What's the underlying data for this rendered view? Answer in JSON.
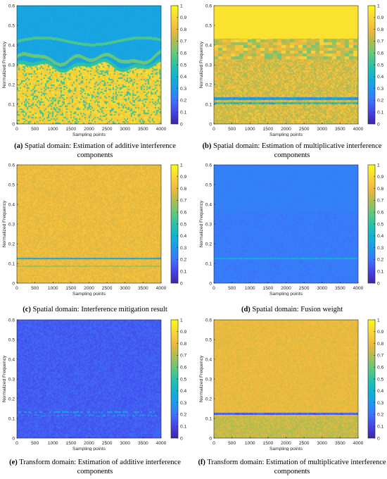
{
  "colors": {
    "colormap": [
      "#3e26a8",
      "#4744e8",
      "#3d75fd",
      "#1d9aeb",
      "#10b4d3",
      "#2dc2a4",
      "#69c77a",
      "#b1bc50",
      "#f0b93d",
      "#fad73a",
      "#f9fb15"
    ],
    "axis": "#262626"
  },
  "chart_data": [
    {
      "id": "a",
      "type": "heatmap",
      "caption_tag": "(a)",
      "caption_text": "Spatial domain: Estimation of additive interference components",
      "xlabel": "Sampling points",
      "ylabel": "Normalized Frequency",
      "xlim": [
        0,
        4000
      ],
      "ylim": [
        0,
        0.6
      ],
      "x_ticks": [
        "0",
        "500",
        "1000",
        "1500",
        "2000",
        "2500",
        "3000",
        "3500",
        "4000"
      ],
      "y_ticks": [
        "0",
        "0.1",
        "0.2",
        "0.3",
        "0.4",
        "0.5",
        "0.6"
      ],
      "colorbar_ticks": [
        "0",
        "0.1",
        "0.2",
        "0.3",
        "0.4",
        "0.5",
        "0.6",
        "0.7",
        "0.8",
        "0.9",
        "1"
      ],
      "colorbar_range": [
        0,
        1
      ],
      "pattern": "additive-spatial"
    },
    {
      "id": "b",
      "type": "heatmap",
      "caption_tag": "(b)",
      "caption_text": "Spatial domain: Estimation of multiplicative interference components",
      "xlabel": "Sampling points",
      "ylabel": "Normalized Frequency",
      "xlim": [
        0,
        4000
      ],
      "ylim": [
        0,
        0.6
      ],
      "x_ticks": [
        "0",
        "500",
        "1000",
        "1500",
        "2000",
        "2500",
        "3000",
        "3500",
        "4000"
      ],
      "y_ticks": [
        "0",
        "0.1",
        "0.2",
        "0.3",
        "0.4",
        "0.5",
        "0.6"
      ],
      "colorbar_ticks": [
        "0",
        "0.1",
        "0.2",
        "0.3",
        "0.4",
        "0.5",
        "0.6",
        "0.7",
        "0.8",
        "0.9",
        "1"
      ],
      "colorbar_range": [
        0,
        1
      ],
      "pattern": "multiplicative-spatial"
    },
    {
      "id": "c",
      "type": "heatmap",
      "caption_tag": "(c)",
      "caption_text": "Spatial domain: Interference mitigation result",
      "xlabel": "Sampling points",
      "ylabel": "Normalized Frequency",
      "xlim": [
        0,
        4000
      ],
      "ylim": [
        0,
        0.6
      ],
      "x_ticks": [
        "0",
        "500",
        "1000",
        "1500",
        "2000",
        "2500",
        "3000",
        "3500",
        "4000"
      ],
      "y_ticks": [
        "0",
        "0.1",
        "0.2",
        "0.3",
        "0.4",
        "0.5",
        "0.6"
      ],
      "colorbar_ticks": [
        "0",
        "0.1",
        "0.2",
        "0.3",
        "0.4",
        "0.5",
        "0.6",
        "0.7",
        "0.8",
        "0.9",
        "1"
      ],
      "colorbar_range": [
        0,
        1
      ],
      "pattern": "mitigation-result"
    },
    {
      "id": "d",
      "type": "heatmap",
      "caption_tag": "(d)",
      "caption_text": "Spatial domain: Fusion weight",
      "xlabel": "Sampling points",
      "ylabel": "Normalized Frequency",
      "xlim": [
        0,
        4000
      ],
      "ylim": [
        0,
        0.6
      ],
      "x_ticks": [
        "0",
        "500",
        "1000",
        "1500",
        "2000",
        "2500",
        "3000",
        "3500",
        "4000"
      ],
      "y_ticks": [
        "0",
        "0.1",
        "0.2",
        "0.3",
        "0.4",
        "0.5",
        "0.6"
      ],
      "colorbar_ticks": [
        "0",
        "0.1",
        "0.2",
        "0.3",
        "0.4",
        "0.5",
        "0.6",
        "0.7",
        "0.8",
        "0.9",
        "1"
      ],
      "colorbar_range": [
        0,
        1
      ],
      "pattern": "fusion-weight"
    },
    {
      "id": "e",
      "type": "heatmap",
      "caption_tag": "(e)",
      "caption_text": "Transform domain: Estimation of additive interference components",
      "xlabel": "Sampling points",
      "ylabel": "Normalized Frequency",
      "xlim": [
        0,
        4000
      ],
      "ylim": [
        0,
        0.6
      ],
      "x_ticks": [
        "0",
        "500",
        "1000",
        "1500",
        "2000",
        "2500",
        "3000",
        "3500",
        "4000"
      ],
      "y_ticks": [
        "0",
        "0.1",
        "0.2",
        "0.3",
        "0.4",
        "0.5",
        "0.6"
      ],
      "colorbar_ticks": [
        "0",
        "0.1",
        "0.2",
        "0.3",
        "0.4",
        "0.5",
        "0.6",
        "0.7",
        "0.8",
        "0.9",
        "1"
      ],
      "colorbar_range": [
        0,
        1
      ],
      "pattern": "additive-transform"
    },
    {
      "id": "f",
      "type": "heatmap",
      "caption_tag": "(f)",
      "caption_text": "Transform domain: Estimation of multiplicative interference components",
      "xlabel": "Sampling points",
      "ylabel": "Normalized Frequency",
      "xlim": [
        0,
        4000
      ],
      "ylim": [
        0,
        0.6
      ],
      "x_ticks": [
        "0",
        "500",
        "1000",
        "1500",
        "2000",
        "2500",
        "3000",
        "3500",
        "4000"
      ],
      "y_ticks": [
        "0",
        "0.1",
        "0.2",
        "0.3",
        "0.4",
        "0.5",
        "0.6"
      ],
      "colorbar_ticks": [
        "0",
        "0.1",
        "0.2",
        "0.3",
        "0.4",
        "0.5",
        "0.6",
        "0.7",
        "0.8",
        "0.9",
        "1"
      ],
      "colorbar_range": [
        0,
        1
      ],
      "pattern": "multiplicative-transform"
    }
  ]
}
